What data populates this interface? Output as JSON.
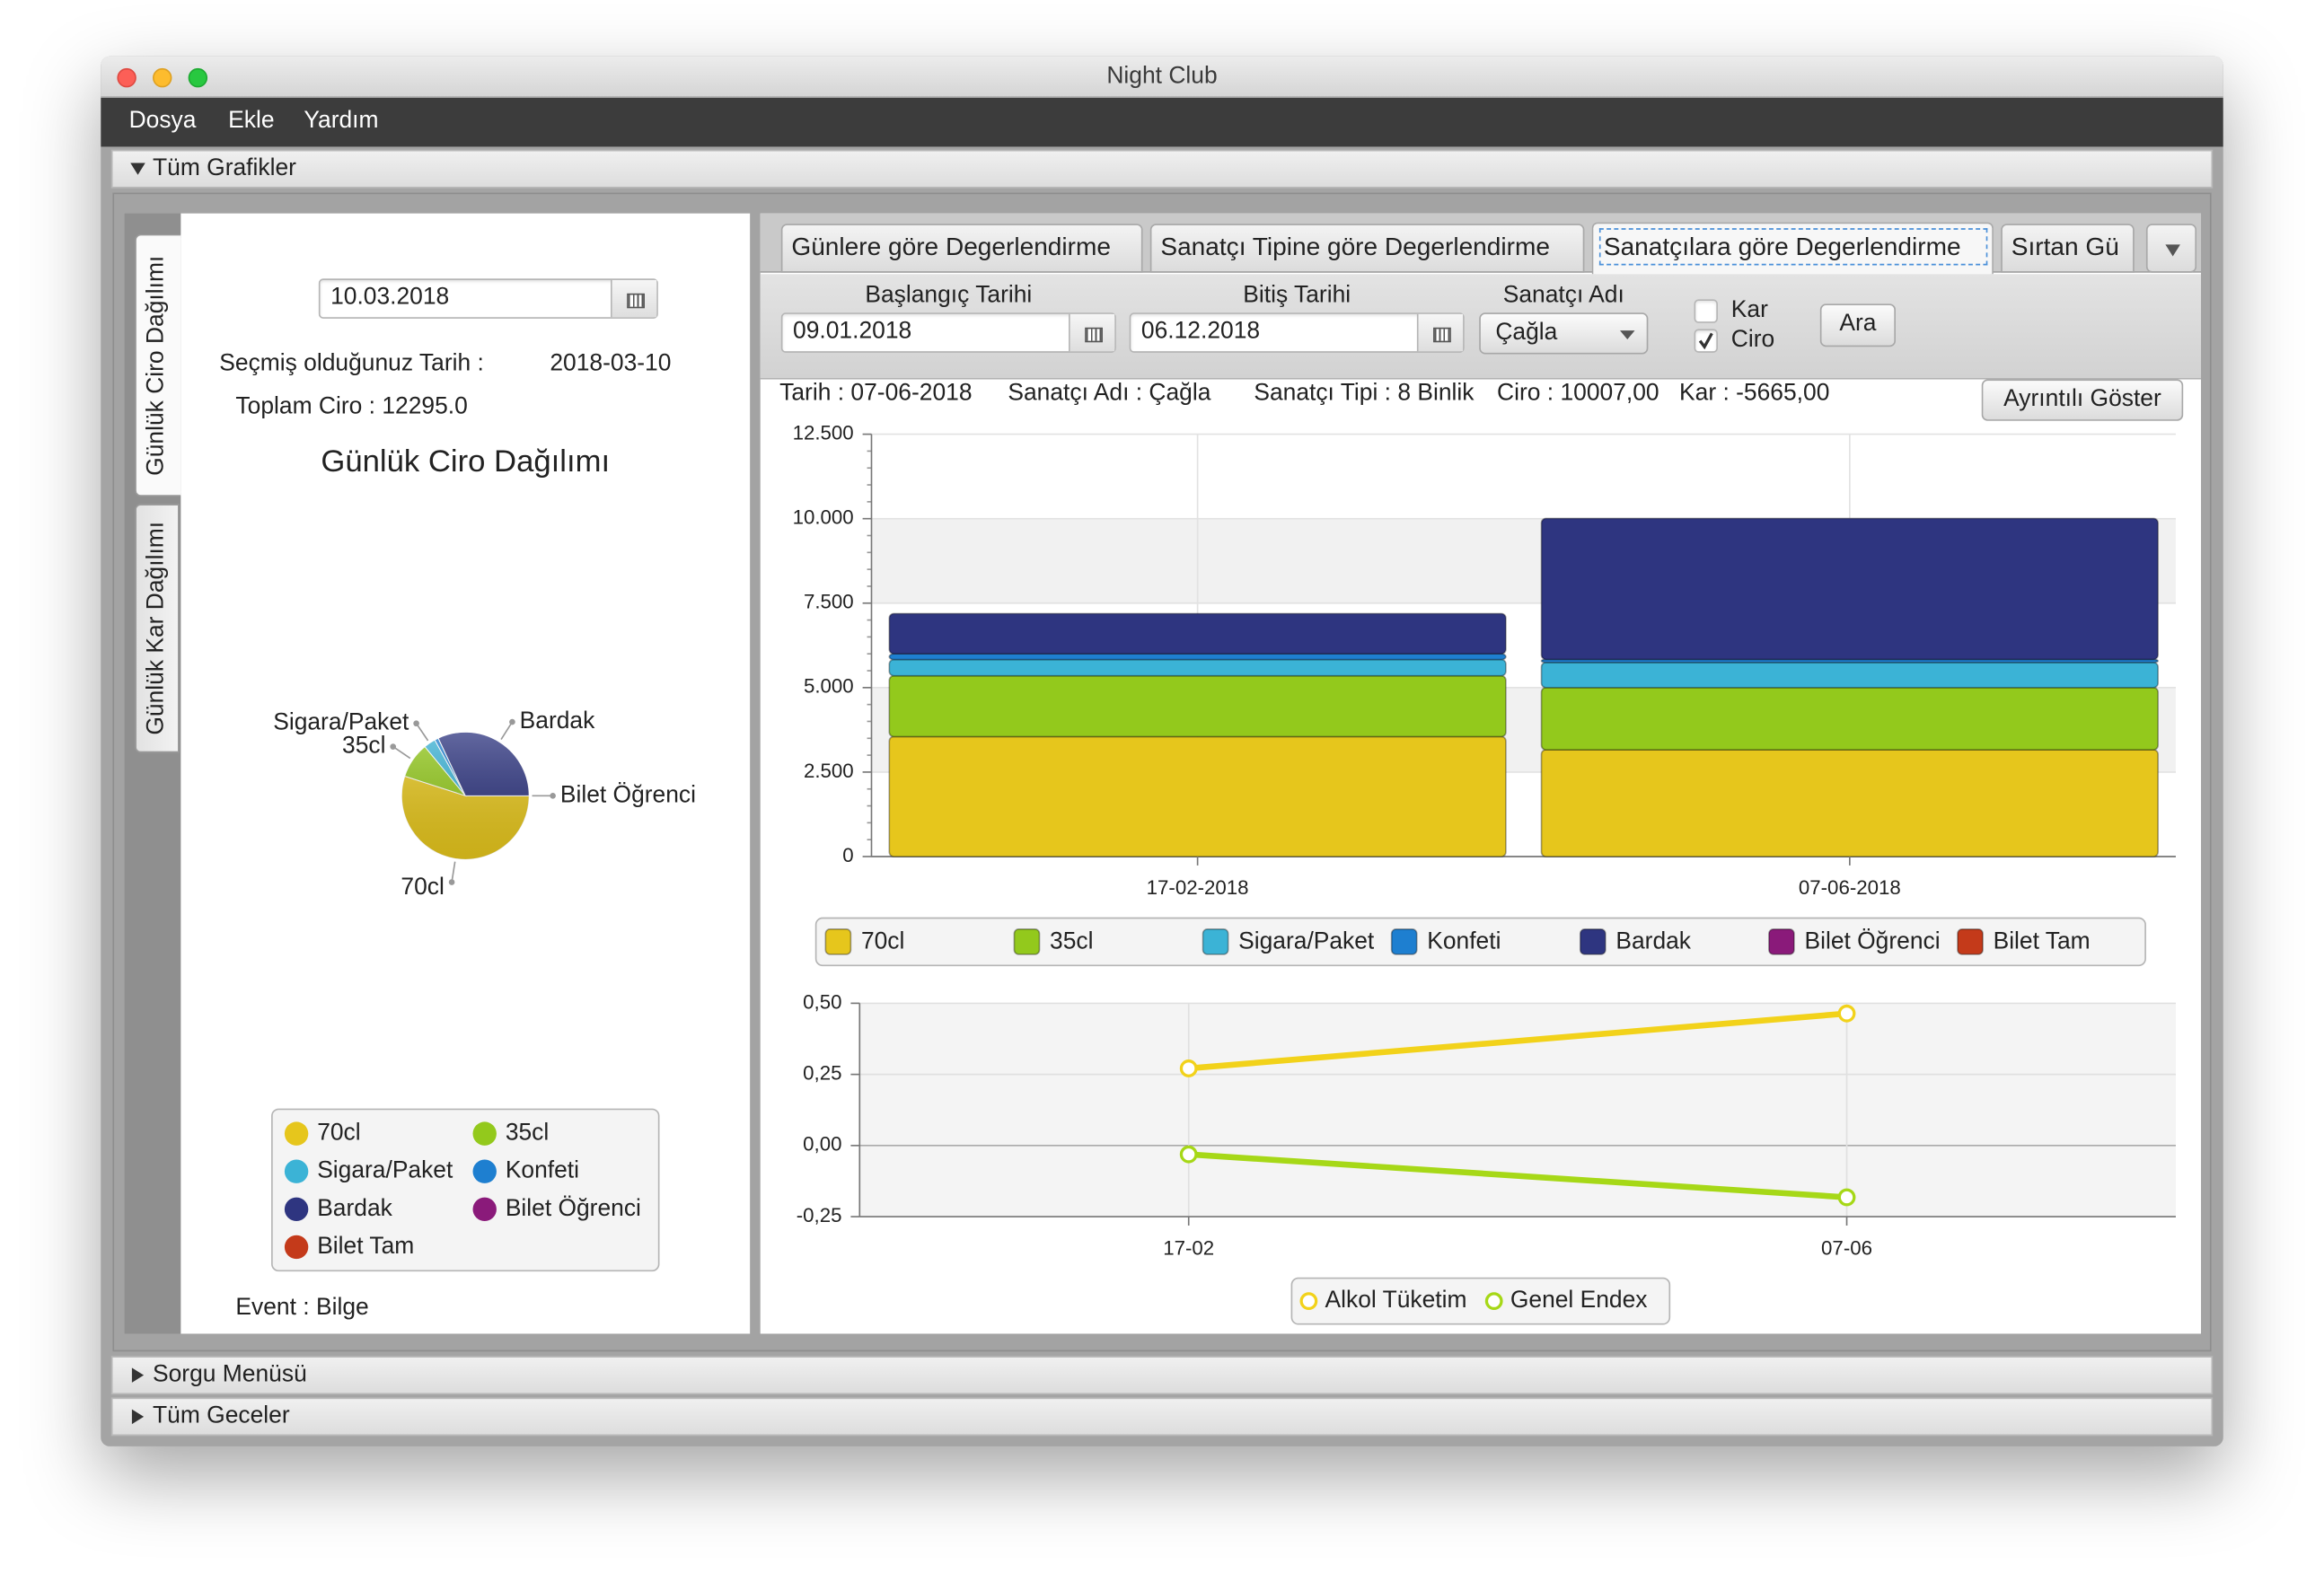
{
  "window": {
    "title": "Night Club"
  },
  "menu": [
    "Dosya",
    "Ekle",
    "Yardım"
  ],
  "sections": [
    "Tüm Grafikler",
    "Sorgu Menüsü",
    "Tüm Geceler"
  ],
  "side_tabs": [
    "Günlük Ciro Dağılımı",
    "Günlük Kar Dağılımı"
  ],
  "left_panel": {
    "date": "10.03.2018",
    "selected_date_label": "Seçmiş olduğunuz Tarih :",
    "selected_date": "2018-03-10",
    "total": "Toplam Ciro : 12295.0",
    "event": "Event : Bilge",
    "pie": {
      "type": "pie",
      "title": "Günlük Ciro Dağılımı",
      "categories": [
        "70cl",
        "35cl",
        "Sigara/Paket",
        "Konfeti",
        "Bardak",
        "Bilet Öğrenci",
        "Bilet Tam"
      ],
      "colors": [
        "#e6c61c",
        "#93c91c",
        "#3bb3d6",
        "#1e7fd0",
        "#2e3580",
        "#8a1a7a",
        "#c43a1a"
      ],
      "values": [
        6760,
        1110,
        370,
        120,
        3935,
        0,
        0
      ]
    }
  },
  "right_panel": {
    "tabs": [
      "Günlere göre Degerlendirme",
      "Sanatçı Tipine göre Degerlendirme",
      "Sanatçılara göre Degerlendirme",
      "Sırtan Gü"
    ],
    "form": {
      "start_label": "Başlangıç Tarihi",
      "start": "09.01.2018",
      "end_label": "Bitiş Tarihi",
      "end": "06.12.2018",
      "artist_label": "Sanatçı Adı",
      "artist": "Çağla",
      "checkboxes": [
        {
          "label": "Kar",
          "checked": false
        },
        {
          "label": "Ciro",
          "checked": true
        }
      ],
      "search": "Ara"
    },
    "info": [
      "Tarih : 07-06-2018",
      "Sanatçı Adı : Çağla",
      "Sanatçı Tipi : 8 Binlik",
      "Ciro : 10007,00",
      "Kar : -5665,00"
    ],
    "detail_button": "Ayrıntılı Göster",
    "bar_chart": {
      "type": "bar",
      "stacked": true,
      "categories": [
        "17-02-2018",
        "07-06-2018"
      ],
      "series": [
        {
          "name": "70cl",
          "color": "#e6c61c",
          "values": [
            3550,
            3160
          ]
        },
        {
          "name": "35cl",
          "color": "#93c91c",
          "values": [
            1800,
            1840
          ]
        },
        {
          "name": "Sigara/Paket",
          "color": "#3bb3d6",
          "values": [
            480,
            745
          ]
        },
        {
          "name": "Konfeti",
          "color": "#1e7fd0",
          "values": [
            170,
            90
          ]
        },
        {
          "name": "Bardak",
          "color": "#2e3580",
          "values": [
            1190,
            4172
          ]
        },
        {
          "name": "Bilet Öğrenci",
          "color": "#8a1a7a",
          "values": [
            0,
            0
          ]
        },
        {
          "name": "Bilet Tam",
          "color": "#c43a1a",
          "values": [
            0,
            0
          ]
        }
      ],
      "ylim": [
        0,
        12500
      ],
      "yticks": [
        0,
        {
          "value": 2500,
          "label": "2.500"
        },
        {
          "value": 5000,
          "label": "5.000"
        },
        {
          "value": 7500,
          "label": "7.500"
        },
        {
          "value": 10000,
          "label": "10.000"
        },
        {
          "value": 12500,
          "label": "12.500"
        }
      ],
      "grid": true
    },
    "line_chart": {
      "type": "line",
      "categories": [
        "17-02",
        "07-06"
      ],
      "series": [
        {
          "name": "Alkol Tüketim",
          "color": "#f2d21a",
          "values": [
            0.271,
            0.464
          ]
        },
        {
          "name": "Genel Endex",
          "color": "#a6d817",
          "values": [
            -0.031,
            -0.182
          ]
        }
      ],
      "ylim": [
        -0.25,
        0.5
      ],
      "yticks": [
        {
          "value": -0.25,
          "label": "-0,25"
        },
        {
          "value": 0,
          "label": "0,00"
        },
        {
          "value": 0.25,
          "label": "0,25"
        },
        {
          "value": 0.5,
          "label": "0,50"
        }
      ],
      "grid": true
    }
  }
}
